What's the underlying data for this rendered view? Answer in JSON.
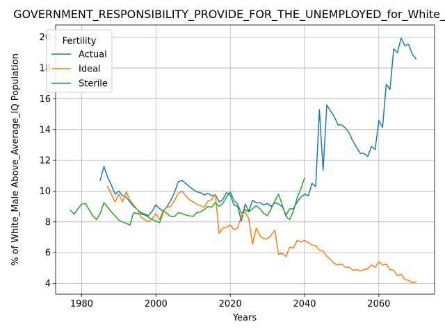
{
  "chart_data": {
    "type": "line",
    "title": "GOVERNMENT_RESPONSIBILITY_PROVIDE_FOR_THE_UNEMPLOYED_for_White_Male",
    "xlabel": "Years",
    "ylabel": "% of White_Male Above_Average_IQ Population",
    "xlim": [
      1973,
      2075
    ],
    "ylim": [
      3.3,
      20.8
    ],
    "xticks": [
      1980,
      2000,
      2020,
      2040,
      2060
    ],
    "yticks": [
      4,
      6,
      8,
      10,
      12,
      14,
      16,
      18,
      20
    ],
    "grid": true,
    "legend": {
      "title": "Fertility",
      "position": "upper-left"
    },
    "series": [
      {
        "name": "Actual",
        "color": "#1f77b4",
        "points": [
          [
            1985,
            10.7
          ],
          [
            1986,
            11.6
          ],
          [
            1987,
            10.9
          ],
          [
            1988,
            10.4
          ],
          [
            1989,
            9.8
          ],
          [
            1990,
            10.0
          ],
          [
            1991,
            9.7
          ],
          [
            1992,
            9.6
          ],
          [
            1993,
            9.3
          ],
          [
            1994,
            9.0
          ],
          [
            1995,
            8.8
          ],
          [
            1996,
            8.6
          ],
          [
            1997,
            8.5
          ],
          [
            1998,
            8.4
          ],
          [
            1999,
            8.7
          ],
          [
            2000,
            9.1
          ],
          [
            2001,
            8.85
          ],
          [
            2002,
            8.7
          ],
          [
            2003,
            9.0
          ],
          [
            2004,
            9.4
          ],
          [
            2005,
            9.9
          ],
          [
            2006,
            10.6
          ],
          [
            2007,
            10.7
          ],
          [
            2008,
            10.5
          ],
          [
            2009,
            10.3
          ],
          [
            2010,
            10.1
          ],
          [
            2011,
            9.95
          ],
          [
            2012,
            9.9
          ],
          [
            2013,
            9.75
          ],
          [
            2014,
            9.85
          ],
          [
            2015,
            9.7
          ],
          [
            2016,
            9.75
          ],
          [
            2017,
            9.3
          ],
          [
            2018,
            9.45
          ],
          [
            2019,
            9.9
          ],
          [
            2020,
            9.75
          ],
          [
            2021,
            9.1
          ],
          [
            2022,
            9.0
          ],
          [
            2023,
            8.05
          ],
          [
            2024,
            9.15
          ],
          [
            2025,
            8.7
          ],
          [
            2026,
            9.4
          ],
          [
            2027,
            9.25
          ],
          [
            2028,
            9.25
          ],
          [
            2029,
            9.1
          ],
          [
            2030,
            9.2
          ],
          [
            2031,
            9.0
          ],
          [
            2032,
            9.25
          ],
          [
            2033,
            9.15
          ],
          [
            2034,
            9.0
          ],
          [
            2035,
            8.45
          ],
          [
            2036,
            8.85
          ],
          [
            2037,
            8.85
          ],
          [
            2038,
            9.3
          ],
          [
            2039,
            9.6
          ],
          [
            2040,
            9.8
          ],
          [
            2041,
            9.7
          ],
          [
            2042,
            10.5
          ],
          [
            2043,
            10.3
          ],
          [
            2044,
            15.3
          ],
          [
            2045,
            11.35
          ],
          [
            2046,
            15.6
          ],
          [
            2047,
            15.2
          ],
          [
            2048,
            14.85
          ],
          [
            2049,
            14.3
          ],
          [
            2050,
            14.3
          ],
          [
            2051,
            14.1
          ],
          [
            2052,
            13.8
          ],
          [
            2053,
            13.25
          ],
          [
            2054,
            12.85
          ],
          [
            2055,
            12.45
          ],
          [
            2056,
            12.45
          ],
          [
            2057,
            12.25
          ],
          [
            2058,
            12.9
          ],
          [
            2059,
            12.7
          ],
          [
            2060,
            14.6
          ],
          [
            2061,
            14.15
          ],
          [
            2062,
            16.95
          ],
          [
            2063,
            16.6
          ],
          [
            2064,
            19.25
          ],
          [
            2065,
            19.0
          ],
          [
            2066,
            19.95
          ],
          [
            2067,
            19.45
          ],
          [
            2068,
            19.55
          ],
          [
            2069,
            18.9
          ],
          [
            2070,
            18.6
          ]
        ]
      },
      {
        "name": "Ideal",
        "color": "#ff7f0e",
        "points": [
          [
            1987,
            10.3
          ],
          [
            1988,
            9.8
          ],
          [
            1989,
            9.3
          ],
          [
            1990,
            9.8
          ],
          [
            1991,
            9.3
          ],
          [
            1992,
            9.95
          ],
          [
            1993,
            9.4
          ],
          [
            1994,
            9.1
          ],
          [
            1995,
            8.8
          ],
          [
            1996,
            8.3
          ],
          [
            1997,
            8.15
          ],
          [
            1998,
            8.0
          ],
          [
            1999,
            8.2
          ],
          [
            2000,
            8.55
          ],
          [
            2001,
            8.15
          ],
          [
            2002,
            8.75
          ],
          [
            2003,
            8.95
          ],
          [
            2004,
            9.0
          ],
          [
            2005,
            9.4
          ],
          [
            2006,
            9.85
          ],
          [
            2007,
            10.0
          ],
          [
            2008,
            9.7
          ],
          [
            2009,
            9.45
          ],
          [
            2010,
            9.3
          ],
          [
            2011,
            9.15
          ],
          [
            2012,
            9.05
          ],
          [
            2013,
            8.95
          ],
          [
            2014,
            9.35
          ],
          [
            2015,
            9.45
          ],
          [
            2016,
            9.8
          ],
          [
            2017,
            7.25
          ],
          [
            2018,
            7.6
          ],
          [
            2019,
            7.65
          ],
          [
            2020,
            7.8
          ],
          [
            2021,
            7.5
          ],
          [
            2022,
            7.6
          ],
          [
            2023,
            8.4
          ],
          [
            2024,
            8.65
          ],
          [
            2025,
            8.2
          ],
          [
            2026,
            6.55
          ],
          [
            2027,
            7.6
          ],
          [
            2028,
            7.1
          ],
          [
            2029,
            6.9
          ],
          [
            2030,
            6.9
          ],
          [
            2031,
            7.15
          ],
          [
            2032,
            7.45
          ],
          [
            2033,
            5.9
          ],
          [
            2034,
            5.95
          ],
          [
            2035,
            5.75
          ],
          [
            2036,
            6.35
          ],
          [
            2037,
            6.3
          ],
          [
            2038,
            6.8
          ],
          [
            2039,
            6.7
          ],
          [
            2040,
            6.8
          ],
          [
            2041,
            6.65
          ],
          [
            2042,
            6.5
          ],
          [
            2043,
            6.45
          ],
          [
            2044,
            6.15
          ],
          [
            2045,
            6.1
          ],
          [
            2046,
            5.75
          ],
          [
            2047,
            5.55
          ],
          [
            2048,
            5.3
          ],
          [
            2049,
            5.2
          ],
          [
            2050,
            5.25
          ],
          [
            2051,
            5.05
          ],
          [
            2052,
            5.05
          ],
          [
            2053,
            4.85
          ],
          [
            2054,
            4.9
          ],
          [
            2055,
            4.8
          ],
          [
            2056,
            4.9
          ],
          [
            2057,
            4.95
          ],
          [
            2058,
            5.2
          ],
          [
            2059,
            5.05
          ],
          [
            2060,
            5.4
          ],
          [
            2061,
            5.2
          ],
          [
            2062,
            5.25
          ],
          [
            2063,
            4.9
          ],
          [
            2064,
            4.85
          ],
          [
            2065,
            4.5
          ],
          [
            2066,
            4.6
          ],
          [
            2067,
            4.25
          ],
          [
            2068,
            4.2
          ],
          [
            2069,
            4.05
          ],
          [
            2070,
            4.1
          ]
        ]
      },
      {
        "name": "Sterile",
        "color": "#2ca02c",
        "points": [
          [
            1977,
            8.75
          ],
          [
            1978,
            8.5
          ],
          [
            1979,
            8.85
          ],
          [
            1980,
            9.15
          ],
          [
            1981,
            9.2
          ],
          [
            1982,
            8.8
          ],
          [
            1983,
            8.4
          ],
          [
            1984,
            8.15
          ],
          [
            1985,
            8.55
          ],
          [
            1986,
            9.25
          ],
          [
            1987,
            8.95
          ],
          [
            1988,
            8.65
          ],
          [
            1989,
            8.4
          ],
          [
            1990,
            8.1
          ],
          [
            1991,
            8.0
          ],
          [
            1992,
            7.9
          ],
          [
            1993,
            7.8
          ],
          [
            1994,
            8.6
          ],
          [
            1995,
            8.55
          ],
          [
            1996,
            8.5
          ],
          [
            1997,
            8.45
          ],
          [
            1998,
            8.3
          ],
          [
            1999,
            8.15
          ],
          [
            2000,
            8.05
          ],
          [
            2001,
            7.95
          ],
          [
            2002,
            8.7
          ],
          [
            2003,
            8.55
          ],
          [
            2004,
            8.35
          ],
          [
            2005,
            8.35
          ],
          [
            2006,
            8.6
          ],
          [
            2007,
            8.55
          ],
          [
            2008,
            8.45
          ],
          [
            2009,
            8.4
          ],
          [
            2010,
            8.35
          ],
          [
            2011,
            8.6
          ],
          [
            2012,
            8.65
          ],
          [
            2013,
            8.8
          ],
          [
            2014,
            9.0
          ],
          [
            2015,
            8.95
          ],
          [
            2016,
            9.25
          ],
          [
            2017,
            9.0
          ],
          [
            2018,
            9.2
          ],
          [
            2019,
            9.6
          ],
          [
            2020,
            9.95
          ],
          [
            2021,
            9.4
          ],
          [
            2022,
            9.15
          ],
          [
            2023,
            8.55
          ],
          [
            2024,
            8.8
          ],
          [
            2025,
            8.65
          ],
          [
            2026,
            8.85
          ],
          [
            2027,
            9.05
          ],
          [
            2028,
            8.85
          ],
          [
            2029,
            8.55
          ],
          [
            2030,
            8.4
          ],
          [
            2031,
            8.85
          ],
          [
            2032,
            9.35
          ],
          [
            2033,
            9.8
          ],
          [
            2034,
            9.1
          ],
          [
            2035,
            8.35
          ],
          [
            2036,
            8.15
          ],
          [
            2037,
            8.7
          ],
          [
            2038,
            9.55
          ],
          [
            2039,
            10.15
          ],
          [
            2040,
            10.85
          ]
        ]
      }
    ]
  }
}
